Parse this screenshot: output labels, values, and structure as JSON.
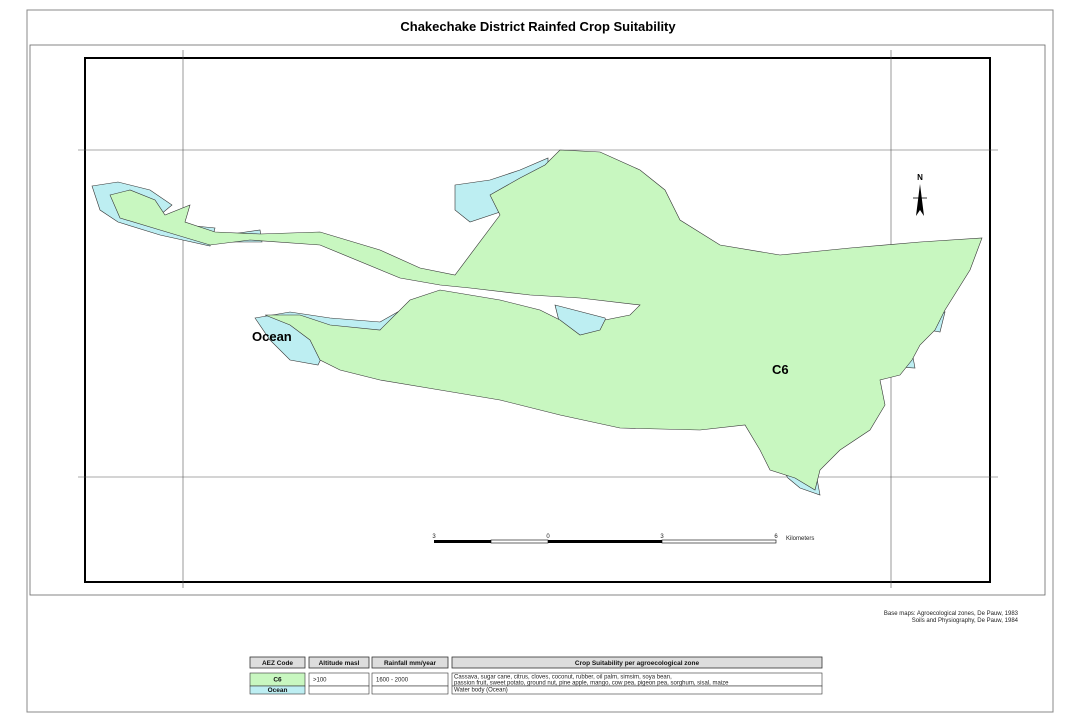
{
  "title": "Chakechake District Rainfed Crop Suitability",
  "map_labels": {
    "ocean": "Ocean",
    "zone": "C6",
    "north": "N"
  },
  "scale_bar": {
    "labels": [
      "3",
      "0",
      "3",
      "6"
    ],
    "unit": "Kilometers"
  },
  "sources": [
    "Base maps: Agroecological zones, De Pauw, 1983",
    "Soils and Physiography, De Pauw, 1984"
  ],
  "table": {
    "headers": [
      "AEZ Code",
      "Altitude masl",
      "Rainfall mm/year",
      "Crop Suitability per agroecological zone"
    ],
    "rows": [
      [
        "C6",
        ">100",
        "1600 - 2000",
        [
          "Cassava, sugar cane,  citrus, cloves, coconut, rubber, oil palm, simsim, soya bean,",
          "passion fruit, sweet potato, ground nut, pine apple, mango, cow pea, pigeon pea, sorghum, sisal, maize"
        ]
      ],
      [
        "Ocean",
        "",
        "",
        [
          "Water body (Ocean)"
        ]
      ]
    ]
  }
}
